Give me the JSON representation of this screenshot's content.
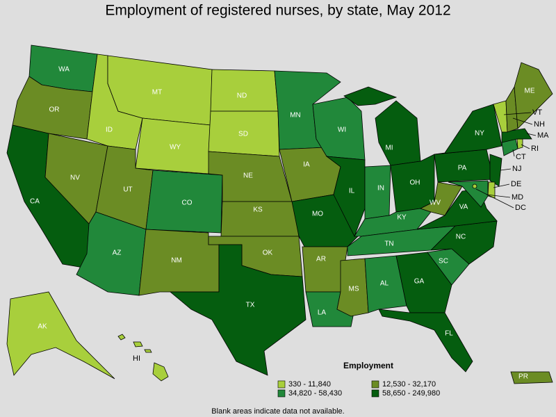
{
  "title": "Employment of registered nurses, by state, May 2012",
  "legend": {
    "title": "Employment",
    "classes": [
      {
        "label": "330 - 11,840",
        "color": "#a8cf3c"
      },
      {
        "label": "12,530 - 32,170",
        "color": "#6b8c24"
      },
      {
        "label": "34,820 - 58,430",
        "color": "#21883a"
      },
      {
        "label": "58,650 - 249,980",
        "color": "#055d0f"
      }
    ]
  },
  "states": [
    {
      "label": "WA",
      "class": 2
    },
    {
      "label": "OR",
      "class": 1
    },
    {
      "label": "CA",
      "class": 3
    },
    {
      "label": "NV",
      "class": 1
    },
    {
      "label": "ID",
      "class": 0
    },
    {
      "label": "MT",
      "class": 0
    },
    {
      "label": "WY",
      "class": 0
    },
    {
      "label": "UT",
      "class": 1
    },
    {
      "label": "CO",
      "class": 2
    },
    {
      "label": "AZ",
      "class": 2
    },
    {
      "label": "NM",
      "class": 1
    },
    {
      "label": "ND",
      "class": 0
    },
    {
      "label": "SD",
      "class": 0
    },
    {
      "label": "NE",
      "class": 1
    },
    {
      "label": "KS",
      "class": 1
    },
    {
      "label": "OK",
      "class": 1
    },
    {
      "label": "TX",
      "class": 3
    },
    {
      "label": "MN",
      "class": 2
    },
    {
      "label": "IA",
      "class": 1
    },
    {
      "label": "MO",
      "class": 3
    },
    {
      "label": "AR",
      "class": 1
    },
    {
      "label": "LA",
      "class": 2
    },
    {
      "label": "MS",
      "class": 1
    },
    {
      "label": "WI",
      "class": 2
    },
    {
      "label": "IL",
      "class": 3
    },
    {
      "label": "IN",
      "class": 2
    },
    {
      "label": "MI",
      "class": 3
    },
    {
      "label": "OH",
      "class": 3
    },
    {
      "label": "KY",
      "class": 2
    },
    {
      "label": "TN",
      "class": 2
    },
    {
      "label": "AL",
      "class": 2
    },
    {
      "label": "GA",
      "class": 3
    },
    {
      "label": "FL",
      "class": 3
    },
    {
      "label": "SC",
      "class": 2
    },
    {
      "label": "NC",
      "class": 3
    },
    {
      "label": "VA",
      "class": 3
    },
    {
      "label": "WV",
      "class": 1
    },
    {
      "label": "PA",
      "class": 3
    },
    {
      "label": "NY",
      "class": 3
    },
    {
      "label": "NJ",
      "class": 3
    },
    {
      "label": "DE",
      "class": 0
    },
    {
      "label": "MD",
      "class": 2
    },
    {
      "label": "DC",
      "class": 0
    },
    {
      "label": "CT",
      "class": 2
    },
    {
      "label": "RI",
      "class": 0
    },
    {
      "label": "MA",
      "class": 3
    },
    {
      "label": "VT",
      "class": 0
    },
    {
      "label": "NH",
      "class": 1
    },
    {
      "label": "ME",
      "class": 1
    },
    {
      "label": "AK",
      "class": 0
    },
    {
      "label": "HI",
      "class": 0
    },
    {
      "label": "PR",
      "class": 1
    }
  ],
  "note": "Blank areas indicate data not available."
}
